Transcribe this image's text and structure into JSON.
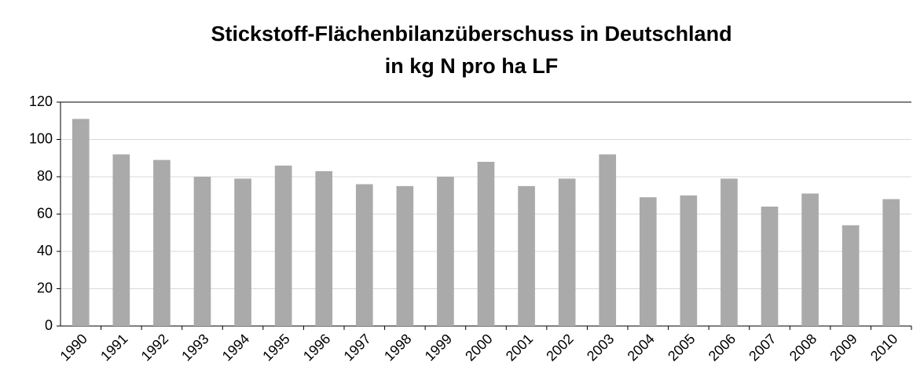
{
  "chart_data": {
    "type": "bar",
    "title": "Stickstoff-Flächenbilanzüberschuss in Deutschland",
    "subtitle": "in kg N pro ha LF",
    "categories": [
      "1990",
      "1991",
      "1992",
      "1993",
      "1994",
      "1995",
      "1996",
      "1997",
      "1998",
      "1999",
      "2000",
      "2001",
      "2002",
      "2003",
      "2004",
      "2005",
      "2006",
      "2007",
      "2008",
      "2009",
      "2010"
    ],
    "values": [
      111,
      92,
      89,
      80,
      79,
      86,
      83,
      76,
      75,
      80,
      88,
      75,
      79,
      92,
      69,
      70,
      79,
      64,
      71,
      54,
      68
    ],
    "color": "#aaaaaa",
    "ylim": [
      0,
      120
    ],
    "yticks": [
      0,
      20,
      40,
      60,
      80,
      100,
      120
    ],
    "grid": true
  }
}
